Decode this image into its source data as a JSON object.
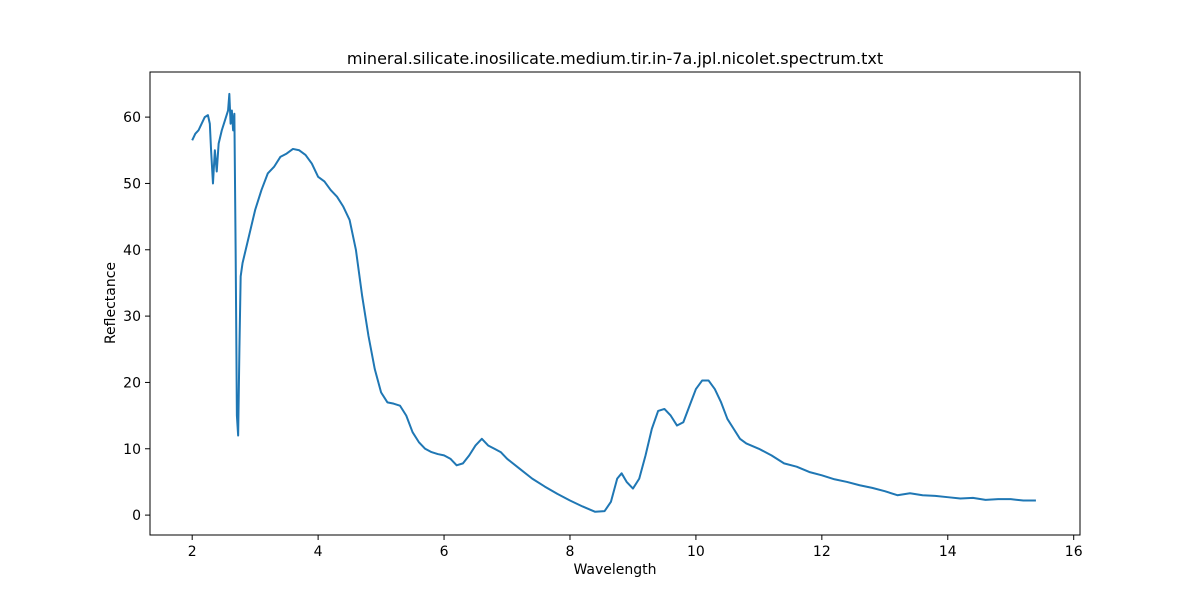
{
  "chart_data": {
    "type": "line",
    "title": "mineral.silicate.inosilicate.medium.tir.in-7a.jpl.nicolet.spectrum.txt",
    "x_label": "Wavelength",
    "y_label": "Reflectance",
    "xlim": [
      1.33,
      16.1
    ],
    "ylim": [
      -3.0,
      66.8
    ],
    "xticks": [
      2,
      4,
      6,
      8,
      10,
      12,
      14,
      16
    ],
    "yticks": [
      0,
      10,
      20,
      30,
      40,
      50,
      60
    ],
    "grid": false,
    "series": [
      {
        "name": "Reflectance",
        "color": "#1f77b4",
        "x": [
          2.0,
          2.05,
          2.1,
          2.15,
          2.2,
          2.25,
          2.28,
          2.3,
          2.33,
          2.36,
          2.39,
          2.42,
          2.47,
          2.52,
          2.57,
          2.59,
          2.61,
          2.63,
          2.65,
          2.67,
          2.69,
          2.71,
          2.73,
          2.75,
          2.77,
          2.8,
          2.9,
          3.0,
          3.1,
          3.2,
          3.3,
          3.4,
          3.5,
          3.6,
          3.7,
          3.8,
          3.9,
          4.0,
          4.1,
          4.2,
          4.3,
          4.4,
          4.5,
          4.6,
          4.7,
          4.8,
          4.9,
          5.0,
          5.1,
          5.2,
          5.3,
          5.4,
          5.5,
          5.6,
          5.7,
          5.8,
          5.9,
          6.0,
          6.1,
          6.2,
          6.3,
          6.4,
          6.5,
          6.6,
          6.7,
          6.8,
          6.9,
          7.0,
          7.2,
          7.4,
          7.6,
          7.8,
          8.0,
          8.2,
          8.4,
          8.55,
          8.65,
          8.75,
          8.82,
          8.9,
          9.0,
          9.1,
          9.2,
          9.3,
          9.4,
          9.5,
          9.6,
          9.7,
          9.8,
          9.9,
          10.0,
          10.1,
          10.2,
          10.3,
          10.4,
          10.5,
          10.6,
          10.7,
          10.8,
          11.0,
          11.2,
          11.4,
          11.6,
          11.8,
          12.0,
          12.2,
          12.4,
          12.6,
          12.8,
          13.0,
          13.2,
          13.4,
          13.6,
          13.8,
          14.0,
          14.2,
          14.4,
          14.6,
          14.8,
          15.0,
          15.2,
          15.4
        ],
        "values": [
          56.5,
          57.5,
          58,
          59,
          60,
          60.3,
          59,
          55,
          50,
          55,
          51.8,
          56,
          58,
          59.5,
          61,
          63.5,
          59,
          61,
          58,
          60.5,
          40,
          15,
          12,
          25,
          36,
          38,
          42,
          46,
          49,
          51.5,
          52.5,
          54,
          54.5,
          55.2,
          55,
          54.3,
          53,
          51,
          50.3,
          49,
          48,
          46.5,
          44.5,
          40,
          33,
          27,
          22,
          18.5,
          17,
          16.8,
          16.5,
          15,
          12.5,
          11,
          10,
          9.5,
          9.2,
          9,
          8.5,
          7.5,
          7.8,
          9,
          10.5,
          11.5,
          10.5,
          10,
          9.5,
          8.5,
          7,
          5.5,
          4.3,
          3.2,
          2.2,
          1.3,
          0.5,
          0.6,
          2,
          5.5,
          6.3,
          5,
          4,
          5.5,
          9,
          13,
          15.7,
          16,
          15,
          13.5,
          14,
          16.5,
          19,
          20.3,
          20.3,
          19,
          17,
          14.5,
          13,
          11.5,
          10.8,
          10,
          9,
          7.8,
          7.3,
          6.5,
          6,
          5.4,
          5,
          4.5,
          4.1,
          3.6,
          3.0,
          3.3,
          3.0,
          2.9,
          2.7,
          2.5,
          2.6,
          2.3,
          2.4,
          2.4,
          2.2,
          2.2
        ]
      }
    ]
  }
}
